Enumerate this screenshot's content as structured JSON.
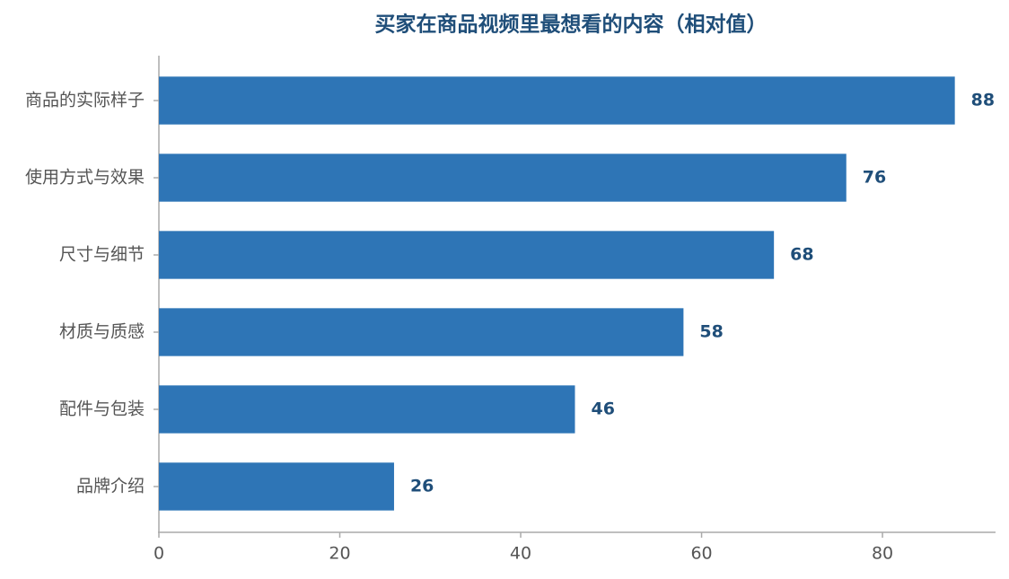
{
  "chart_data": {
    "type": "barh",
    "title": "买家在商品视频里最想看的内容（相对值）",
    "categories": [
      "商品的实际样子",
      "使用方式与效果",
      "尺寸与细节",
      "材质与质感",
      "配件与包装",
      "品牌介绍"
    ],
    "values": [
      88,
      76,
      68,
      58,
      46,
      26
    ],
    "color": "#2e75b6",
    "xlim": [
      0,
      92.5
    ],
    "xticks": [
      0,
      20,
      40,
      60,
      80
    ],
    "grid": false
  }
}
